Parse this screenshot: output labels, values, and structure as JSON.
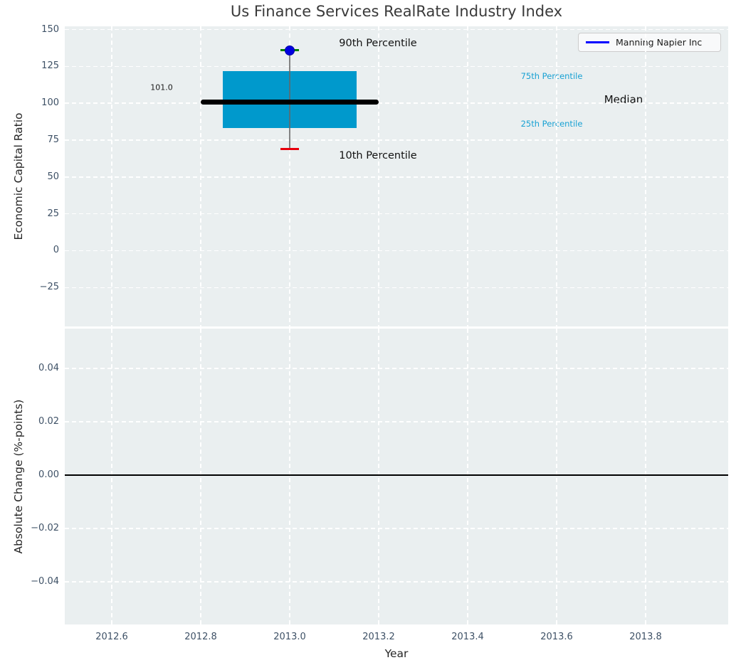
{
  "chart_data": [
    {
      "type": "box",
      "title": "Us Finance Services RealRate Industry Index",
      "ylabel": "Economic Capital Ratio",
      "ylim": [
        -46,
        152
      ],
      "yticks": [
        150,
        125,
        100,
        75,
        50,
        25,
        0,
        -25
      ],
      "grid": true,
      "legend": {
        "position": "upper right",
        "entries": [
          {
            "label": "Manning Napier Inc",
            "color": "#0000ff"
          }
        ]
      },
      "box": {
        "x": 2013.0,
        "p10": 69,
        "p25": 83,
        "median": 101.0,
        "p75": 122,
        "p90": 136,
        "box_halfwidth": 0.15,
        "median_halfwidth": 0.2,
        "company_point": {
          "name": "Manning Napier Inc",
          "x": 2013.0,
          "y": 136
        }
      },
      "annotations": {
        "p90_label": "90th Percentile",
        "p75_label": "75th Percentile",
        "median_label": "Median",
        "p25_label": "25th Percentile",
        "p10_label": "10th Percentile",
        "median_value": "101.0"
      },
      "colors": {
        "box_fill": "#0099cc",
        "median_line": "#000000",
        "whisker": "#666666",
        "cap_90": "#008000",
        "cap_10": "#e8000b",
        "company_point": "#0000e0",
        "percentile_text": "#18a1d3",
        "axes_background": "#eaeff0",
        "grid": "#ffffff",
        "tick_text": "#3e5166"
      }
    },
    {
      "type": "line",
      "ylabel": "Absolute Change (%-points)",
      "xlabel": "Year",
      "ylim": [
        -0.055,
        0.055
      ],
      "yticks": [
        0.04,
        0.02,
        0,
        -0.02,
        -0.04
      ],
      "zero_line": 0,
      "xticks": [
        2012.6,
        2012.8,
        2013.0,
        2013.2,
        2013.4,
        2013.6,
        2013.8
      ]
    }
  ]
}
